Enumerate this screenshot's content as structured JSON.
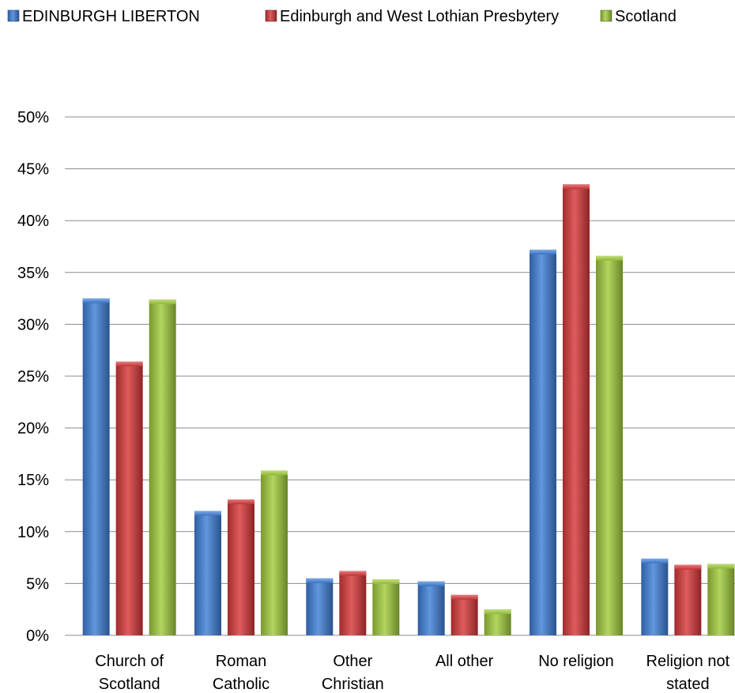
{
  "chart_data": {
    "type": "bar",
    "title": "",
    "xlabel": "",
    "ylabel": "",
    "categories": [
      [
        "Church of",
        "Scotland"
      ],
      [
        "Roman",
        "Catholic"
      ],
      [
        "Other",
        "Christian"
      ],
      [
        "All other"
      ],
      [
        "No religion"
      ],
      [
        "Religion not",
        "stated"
      ]
    ],
    "series": [
      {
        "name": "EDINBURGH LIBERTON",
        "color": "#3f7fd8",
        "values": [
          32.5,
          12.0,
          5.5,
          5.2,
          37.2,
          7.4
        ]
      },
      {
        "name": "Edinburgh and West Lothian Presbytery",
        "color": "#d8383a",
        "values": [
          26.4,
          13.1,
          6.2,
          3.9,
          43.5,
          6.8
        ]
      },
      {
        "name": "Scotland",
        "color": "#a1cc3c",
        "values": [
          32.4,
          15.9,
          5.4,
          2.5,
          36.6,
          6.9
        ]
      }
    ],
    "ylim": [
      0,
      50
    ],
    "yticks": [
      "0%",
      "5%",
      "10%",
      "15%",
      "20%",
      "25%",
      "30%",
      "35%",
      "40%",
      "45%",
      "50%"
    ],
    "grid": true,
    "legend_position": "top"
  }
}
